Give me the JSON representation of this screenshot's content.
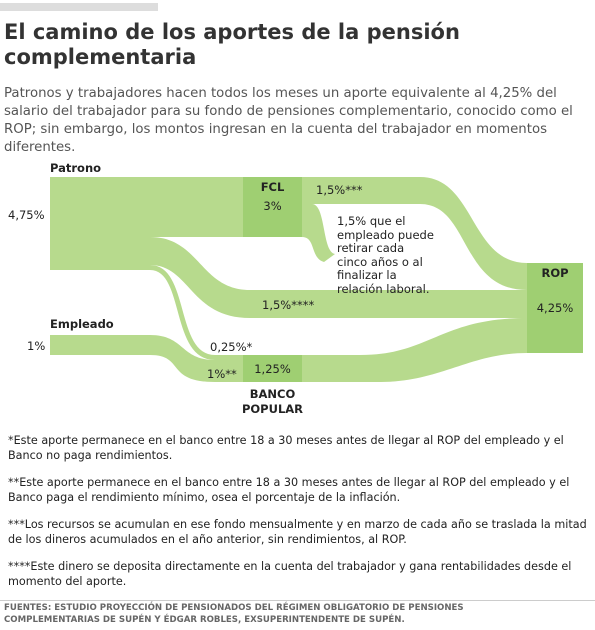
{
  "header": {
    "title": "El camino de los aportes de la pensión complementaria",
    "subtitle": "Patronos y trabajadores hacen todos los meses un aporte equivalente al 4,25% del salario del trabajador para su fondo de pensiones complementario, conocido como el ROP; sin embargo, los montos ingresan en la cuenta del trabajador en momentos diferentes."
  },
  "diagram": {
    "nodes": {
      "patrono": {
        "label": "Patrono",
        "value": "4,75%"
      },
      "empleado": {
        "label": "Empleado",
        "value": "1%"
      },
      "fcl": {
        "label": "FCL",
        "value": "3%"
      },
      "banco": {
        "label": "BANCO POPULAR",
        "value": "1,25%"
      },
      "rop": {
        "label": "ROP",
        "value": "4,25%"
      }
    },
    "flows": {
      "fcl_rop": "1,5%***",
      "patrono_rop": "1,5%****",
      "patrono_banco": "0,25%*",
      "empleado_banco": "1%**"
    },
    "note": "1,5% que el empleado puede retirar cada cinco años o al finalizar la relación laboral."
  },
  "footnotes": [
    "*Este aporte permanece en el banco entre 18 a 30 meses antes de llegar al ROP del empleado y el Banco no paga rendimientos.",
    "**Este aporte permanece en el banco entre 18 a 30 meses antes de llegar al ROP del empleado y el Banco paga el rendimiento mínimo, osea el porcentaje de la inflación.",
    "***Los recursos se acumulan en ese fondo mensualmente y en marzo de cada año se traslada la mitad de los dineros acumulados en el año anterior, sin rendimientos, al ROP.",
    "****Este dinero se deposita directamente en la cuenta del trabajador y gana rentabilidades desde el momento del aporte."
  ],
  "source": "FUENTES: ESTUDIO PROYECCIÓN DE PENSIONADOS DEL RÉGIMEN OBLIGATORIO DE PENSIONES COMPLEMENTARIAS DE SUPÉN Y ÉDGAR ROBLES, EXSUPERINTENDENTE DE SUPÉN."
}
